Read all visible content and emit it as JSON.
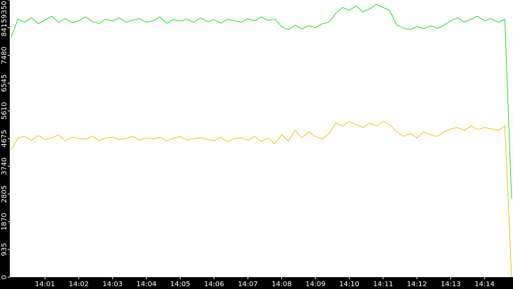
{
  "chart_data": {
    "type": "line",
    "categories": [
      null,
      null,
      null,
      null,
      null,
      "14:01",
      null,
      null,
      null,
      null,
      "14:02",
      null,
      null,
      null,
      null,
      "14:03",
      null,
      null,
      null,
      null,
      "14:04",
      null,
      null,
      null,
      null,
      "14:05",
      null,
      null,
      null,
      null,
      "14:06",
      null,
      null,
      null,
      null,
      "14:07",
      null,
      null,
      null,
      null,
      "14:08",
      null,
      null,
      null,
      null,
      "14:09",
      null,
      null,
      null,
      null,
      "14:10",
      null,
      null,
      null,
      null,
      "14:11",
      null,
      null,
      null,
      null,
      "14:12",
      null,
      null,
      null,
      null,
      "14:13",
      null,
      null,
      null,
      null,
      "14:14",
      null,
      null,
      null,
      null
    ],
    "series": [
      {
        "color": "#22dd22",
        "values": [
          8100,
          8700,
          8600,
          8750,
          8550,
          8680,
          8800,
          8600,
          8720,
          8580,
          8650,
          8780,
          8620,
          8560,
          8700,
          8640,
          8750,
          8590,
          8680,
          8720,
          8600,
          8650,
          8780,
          8560,
          8690,
          8640,
          8700,
          8600,
          8750,
          8620,
          8680,
          8570,
          8700,
          8650,
          8600,
          8720,
          8640,
          8780,
          8660,
          8700,
          8450,
          8350,
          8500,
          8380,
          8480,
          8420,
          8550,
          8600,
          8900,
          9100,
          9000,
          9150,
          8950,
          9050,
          9200,
          9100,
          9000,
          8500,
          8400,
          8350,
          8450,
          8380,
          8480,
          8400,
          8500,
          8650,
          8750,
          8600,
          8700,
          8800,
          8650,
          8720,
          8600,
          8700,
          2650
        ]
      },
      {
        "color": "#f0c010",
        "values": [
          4300,
          4700,
          4750,
          4620,
          4780,
          4650,
          4700,
          4800,
          4600,
          4720,
          4680,
          4650,
          4760,
          4600,
          4700,
          4720,
          4640,
          4680,
          4750,
          4620,
          4700,
          4660,
          4720,
          4600,
          4690,
          4740,
          4620,
          4680,
          4700,
          4650,
          4600,
          4720,
          4560,
          4680,
          4700,
          4620,
          4750,
          4580,
          4680,
          4500,
          4800,
          4600,
          4950,
          4700,
          4900,
          4750,
          4650,
          4850,
          5200,
          5100,
          5250,
          5150,
          5050,
          5200,
          5100,
          5250,
          5150,
          4900,
          4750,
          4850,
          4700,
          4900,
          4800,
          4750,
          4900,
          5000,
          5050,
          4950,
          5100,
          4980,
          5050,
          5000,
          4950,
          5100,
          0
        ]
      }
    ],
    "ylim": [
      0,
      9350
    ],
    "yticks": [
      0,
      935,
      1870,
      2805,
      3740,
      4675,
      5610,
      6545,
      7480,
      8415,
      9350
    ],
    "grid": false
  }
}
